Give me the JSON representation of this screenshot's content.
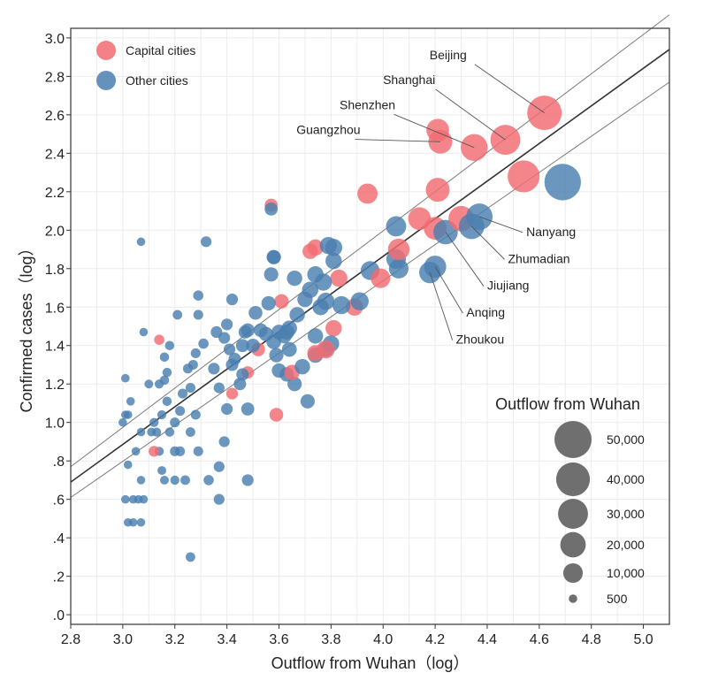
{
  "chart_data": {
    "type": "scatter",
    "xlabel": "Outflow from Wuhan（log）",
    "ylabel": "Confirmed cases（log）",
    "xlim": [
      2.8,
      5.1
    ],
    "ylim": [
      -0.05,
      3.05
    ],
    "x_ticks": [
      "2.8",
      "3.0",
      "3.2",
      "3.4",
      "3.6",
      "3.8",
      "4.0",
      "4.2",
      "4.4",
      "4.6",
      "4.8",
      "5.0"
    ],
    "x_tick_values": [
      2.8,
      3.0,
      3.2,
      3.4,
      3.6,
      3.8,
      4.0,
      4.2,
      4.4,
      4.6,
      4.8,
      5.0
    ],
    "y_ticks": [
      ".0",
      ".2",
      ".4",
      ".6",
      ".8",
      "1.0",
      "1.2",
      "1.4",
      "1.6",
      "1.8",
      "2.0",
      "2.2",
      "2.4",
      "2.6",
      "2.8",
      "3.0"
    ],
    "y_tick_values": [
      0.0,
      0.2,
      0.4,
      0.6,
      0.8,
      1.0,
      1.2,
      1.4,
      1.6,
      1.8,
      2.0,
      2.2,
      2.4,
      2.6,
      2.8,
      3.0
    ],
    "grid": true,
    "legend": {
      "placement": "top-left",
      "entries": [
        {
          "name": "Capital cities",
          "color": "#f26b72"
        },
        {
          "name": "Other cities",
          "color": "#4a7fb0"
        }
      ]
    },
    "size_legend": {
      "title": "Outflow from Wuhan",
      "placement": "bottom-right",
      "entries": [
        {
          "label": "50,000",
          "value": 50000
        },
        {
          "label": "40,000",
          "value": 40000
        },
        {
          "label": "30,000",
          "value": 30000
        },
        {
          "label": "20,000",
          "value": 20000
        },
        {
          "label": "10,000",
          "value": 10000
        },
        {
          "label": "500",
          "value": 500
        }
      ]
    },
    "regression": {
      "fit": {
        "x": [
          2.8,
          5.1
        ],
        "y": [
          0.69,
          2.94
        ]
      },
      "ci_upper": {
        "x": [
          2.8,
          5.1
        ],
        "y": [
          0.77,
          3.12
        ]
      },
      "ci_lower": {
        "x": [
          2.8,
          5.1
        ],
        "y": [
          0.61,
          2.77
        ]
      }
    },
    "annotations": [
      {
        "text": "Beijing",
        "x": 4.62,
        "y": 2.61,
        "label_x": 4.25,
        "label_y": 2.89,
        "anchor": "middle"
      },
      {
        "text": "Shanghai",
        "x": 4.47,
        "y": 2.47,
        "label_x": 4.1,
        "label_y": 2.76,
        "anchor": "middle"
      },
      {
        "text": "Shenzhen",
        "x": 4.35,
        "y": 2.43,
        "label_x": 3.94,
        "label_y": 2.63,
        "anchor": "middle"
      },
      {
        "text": "Guangzhou",
        "x": 4.22,
        "y": 2.46,
        "label_x": 3.79,
        "label_y": 2.5,
        "anchor": "middle"
      },
      {
        "text": "Nanyang",
        "x": 4.37,
        "y": 2.07,
        "label_x": 4.55,
        "label_y": 1.97,
        "anchor": "start"
      },
      {
        "text": "Zhumadian",
        "x": 4.34,
        "y": 2.02,
        "label_x": 4.48,
        "label_y": 1.83,
        "anchor": "start"
      },
      {
        "text": "Jiujiang",
        "x": 4.24,
        "y": 1.99,
        "label_x": 4.4,
        "label_y": 1.69,
        "anchor": "start"
      },
      {
        "text": "Anqing",
        "x": 4.2,
        "y": 1.81,
        "label_x": 4.32,
        "label_y": 1.55,
        "anchor": "start"
      },
      {
        "text": "Zhoukou",
        "x": 4.18,
        "y": 1.78,
        "label_x": 4.28,
        "label_y": 1.41,
        "anchor": "start"
      }
    ],
    "series": [
      {
        "name": "Capital cities",
        "color": "#f26b72",
        "points": [
          {
            "x": 4.62,
            "y": 2.61,
            "s": 42000
          },
          {
            "x": 4.47,
            "y": 2.47,
            "s": 30000
          },
          {
            "x": 4.35,
            "y": 2.43,
            "s": 23000
          },
          {
            "x": 4.22,
            "y": 2.46,
            "s": 17000
          },
          {
            "x": 4.21,
            "y": 2.52,
            "s": 15000
          },
          {
            "x": 4.54,
            "y": 2.28,
            "s": 35000
          },
          {
            "x": 4.21,
            "y": 2.21,
            "s": 17000
          },
          {
            "x": 3.94,
            "y": 2.19,
            "s": 11000
          },
          {
            "x": 4.14,
            "y": 2.06,
            "s": 15000
          },
          {
            "x": 4.2,
            "y": 2.01,
            "s": 15000
          },
          {
            "x": 4.3,
            "y": 2.06,
            "s": 20000
          },
          {
            "x": 4.06,
            "y": 1.9,
            "s": 13000
          },
          {
            "x": 3.99,
            "y": 1.75,
            "s": 10000
          },
          {
            "x": 3.74,
            "y": 1.91,
            "s": 6000
          },
          {
            "x": 3.72,
            "y": 1.89,
            "s": 5000
          },
          {
            "x": 3.83,
            "y": 1.75,
            "s": 7000
          },
          {
            "x": 3.89,
            "y": 1.6,
            "s": 7000
          },
          {
            "x": 3.61,
            "y": 1.63,
            "s": 4000
          },
          {
            "x": 3.57,
            "y": 2.13,
            "s": 3000
          },
          {
            "x": 3.81,
            "y": 1.49,
            "s": 6000
          },
          {
            "x": 3.78,
            "y": 1.38,
            "s": 8000
          },
          {
            "x": 3.74,
            "y": 1.36,
            "s": 6000
          },
          {
            "x": 3.52,
            "y": 1.38,
            "s": 3500
          },
          {
            "x": 3.59,
            "y": 1.04,
            "s": 3500
          },
          {
            "x": 3.65,
            "y": 1.26,
            "s": 5000
          },
          {
            "x": 3.48,
            "y": 1.26,
            "s": 2500
          },
          {
            "x": 3.42,
            "y": 1.15,
            "s": 2000
          },
          {
            "x": 3.12,
            "y": 0.85,
            "s": 1500
          },
          {
            "x": 3.14,
            "y": 1.43,
            "s": 1200
          }
        ]
      },
      {
        "name": "Other cities",
        "color": "#4a7fb0",
        "points": [
          {
            "x": 4.69,
            "y": 2.25,
            "s": 48000
          },
          {
            "x": 4.37,
            "y": 2.07,
            "s": 22000
          },
          {
            "x": 4.34,
            "y": 2.02,
            "s": 20000
          },
          {
            "x": 4.24,
            "y": 1.99,
            "s": 18000
          },
          {
            "x": 4.2,
            "y": 1.81,
            "s": 14000
          },
          {
            "x": 4.18,
            "y": 1.78,
            "s": 13000
          },
          {
            "x": 4.05,
            "y": 2.02,
            "s": 11000
          },
          {
            "x": 4.05,
            "y": 1.85,
            "s": 10000
          },
          {
            "x": 4.06,
            "y": 1.8,
            "s": 10000
          },
          {
            "x": 3.95,
            "y": 1.79,
            "s": 9000
          },
          {
            "x": 3.91,
            "y": 1.63,
            "s": 8000
          },
          {
            "x": 3.84,
            "y": 1.61,
            "s": 8000
          },
          {
            "x": 3.79,
            "y": 1.92,
            "s": 7000
          },
          {
            "x": 3.81,
            "y": 1.91,
            "s": 7000
          },
          {
            "x": 3.81,
            "y": 1.84,
            "s": 6000
          },
          {
            "x": 3.77,
            "y": 1.73,
            "s": 7000
          },
          {
            "x": 3.74,
            "y": 1.77,
            "s": 6000
          },
          {
            "x": 3.78,
            "y": 1.63,
            "s": 7000
          },
          {
            "x": 3.76,
            "y": 1.6,
            "s": 6000
          },
          {
            "x": 3.72,
            "y": 1.69,
            "s": 6000
          },
          {
            "x": 3.7,
            "y": 1.64,
            "s": 5000
          },
          {
            "x": 3.67,
            "y": 1.56,
            "s": 5000
          },
          {
            "x": 3.66,
            "y": 1.75,
            "s": 5000
          },
          {
            "x": 3.64,
            "y": 1.49,
            "s": 5000
          },
          {
            "x": 3.63,
            "y": 1.47,
            "s": 5000
          },
          {
            "x": 3.62,
            "y": 1.45,
            "s": 4500
          },
          {
            "x": 3.6,
            "y": 1.47,
            "s": 4500
          },
          {
            "x": 3.58,
            "y": 1.42,
            "s": 4500
          },
          {
            "x": 3.58,
            "y": 1.86,
            "s": 4000
          },
          {
            "x": 3.57,
            "y": 1.77,
            "s": 4000
          },
          {
            "x": 3.56,
            "y": 1.62,
            "s": 4000
          },
          {
            "x": 3.55,
            "y": 1.46,
            "s": 4000
          },
          {
            "x": 3.53,
            "y": 1.48,
            "s": 3500
          },
          {
            "x": 3.51,
            "y": 1.57,
            "s": 3500
          },
          {
            "x": 3.5,
            "y": 1.4,
            "s": 3500
          },
          {
            "x": 3.48,
            "y": 1.48,
            "s": 3500
          },
          {
            "x": 3.47,
            "y": 1.47,
            "s": 3000
          },
          {
            "x": 3.46,
            "y": 1.4,
            "s": 3000
          },
          {
            "x": 3.57,
            "y": 2.11,
            "s": 3000
          },
          {
            "x": 3.58,
            "y": 1.86,
            "s": 3500
          },
          {
            "x": 3.59,
            "y": 1.35,
            "s": 4000
          },
          {
            "x": 3.64,
            "y": 1.38,
            "s": 4500
          },
          {
            "x": 3.6,
            "y": 1.27,
            "s": 4000
          },
          {
            "x": 3.63,
            "y": 1.25,
            "s": 4000
          },
          {
            "x": 3.66,
            "y": 1.2,
            "s": 4000
          },
          {
            "x": 3.69,
            "y": 1.29,
            "s": 5000
          },
          {
            "x": 3.74,
            "y": 1.45,
            "s": 5000
          },
          {
            "x": 3.78,
            "y": 1.38,
            "s": 5000
          },
          {
            "x": 3.8,
            "y": 1.41,
            "s": 6000
          },
          {
            "x": 3.74,
            "y": 1.35,
            "s": 5000
          },
          {
            "x": 3.71,
            "y": 1.11,
            "s": 4000
          },
          {
            "x": 3.48,
            "y": 1.07,
            "s": 3000
          },
          {
            "x": 3.46,
            "y": 1.25,
            "s": 2500
          },
          {
            "x": 3.45,
            "y": 1.2,
            "s": 2500
          },
          {
            "x": 3.43,
            "y": 1.33,
            "s": 2500
          },
          {
            "x": 3.42,
            "y": 1.3,
            "s": 2500
          },
          {
            "x": 3.41,
            "y": 1.38,
            "s": 2000
          },
          {
            "x": 3.4,
            "y": 1.51,
            "s": 2000
          },
          {
            "x": 3.39,
            "y": 1.44,
            "s": 2000
          },
          {
            "x": 3.42,
            "y": 1.64,
            "s": 2000
          },
          {
            "x": 3.36,
            "y": 1.47,
            "s": 2000
          },
          {
            "x": 3.35,
            "y": 1.28,
            "s": 2000
          },
          {
            "x": 3.37,
            "y": 1.18,
            "s": 1500
          },
          {
            "x": 3.4,
            "y": 1.07,
            "s": 2000
          },
          {
            "x": 3.39,
            "y": 0.9,
            "s": 1500
          },
          {
            "x": 3.37,
            "y": 0.77,
            "s": 1500
          },
          {
            "x": 3.37,
            "y": 0.6,
            "s": 1500
          },
          {
            "x": 3.48,
            "y": 0.7,
            "s": 2000
          },
          {
            "x": 3.32,
            "y": 1.94,
            "s": 1500
          },
          {
            "x": 3.29,
            "y": 1.66,
            "s": 1200
          },
          {
            "x": 3.29,
            "y": 1.56,
            "s": 1000
          },
          {
            "x": 3.31,
            "y": 1.41,
            "s": 1200
          },
          {
            "x": 3.28,
            "y": 1.36,
            "s": 1000
          },
          {
            "x": 3.27,
            "y": 1.3,
            "s": 1000
          },
          {
            "x": 3.25,
            "y": 1.28,
            "s": 1000
          },
          {
            "x": 3.26,
            "y": 1.18,
            "s": 1000
          },
          {
            "x": 3.23,
            "y": 1.15,
            "s": 1000
          },
          {
            "x": 3.22,
            "y": 1.06,
            "s": 1000
          },
          {
            "x": 3.2,
            "y": 1.0,
            "s": 1000
          },
          {
            "x": 3.28,
            "y": 1.04,
            "s": 1000
          },
          {
            "x": 3.26,
            "y": 0.95,
            "s": 900
          },
          {
            "x": 3.29,
            "y": 0.85,
            "s": 1000
          },
          {
            "x": 3.33,
            "y": 0.7,
            "s": 1200
          },
          {
            "x": 3.24,
            "y": 0.7,
            "s": 900
          },
          {
            "x": 3.22,
            "y": 0.85,
            "s": 1000
          },
          {
            "x": 3.2,
            "y": 0.85,
            "s": 1000
          },
          {
            "x": 3.26,
            "y": 0.3,
            "s": 900
          },
          {
            "x": 3.21,
            "y": 1.56,
            "s": 900
          },
          {
            "x": 3.18,
            "y": 1.4,
            "s": 800
          },
          {
            "x": 3.16,
            "y": 1.34,
            "s": 800
          },
          {
            "x": 3.17,
            "y": 1.26,
            "s": 800
          },
          {
            "x": 3.16,
            "y": 1.22,
            "s": 800
          },
          {
            "x": 3.14,
            "y": 1.2,
            "s": 700
          },
          {
            "x": 3.17,
            "y": 1.11,
            "s": 800
          },
          {
            "x": 3.15,
            "y": 1.04,
            "s": 700
          },
          {
            "x": 3.12,
            "y": 1.0,
            "s": 700
          },
          {
            "x": 3.13,
            "y": 0.95,
            "s": 700
          },
          {
            "x": 3.18,
            "y": 0.95,
            "s": 800
          },
          {
            "x": 3.1,
            "y": 1.2,
            "s": 600
          },
          {
            "x": 3.11,
            "y": 0.95,
            "s": 600
          },
          {
            "x": 3.14,
            "y": 0.85,
            "s": 700
          },
          {
            "x": 3.15,
            "y": 0.75,
            "s": 600
          },
          {
            "x": 3.16,
            "y": 0.7,
            "s": 600
          },
          {
            "x": 3.2,
            "y": 0.7,
            "s": 700
          },
          {
            "x": 3.07,
            "y": 1.94,
            "s": 500
          },
          {
            "x": 3.08,
            "y": 1.47,
            "s": 500
          },
          {
            "x": 3.01,
            "y": 1.23,
            "s": 500
          },
          {
            "x": 3.03,
            "y": 1.11,
            "s": 500
          },
          {
            "x": 3.01,
            "y": 1.04,
            "s": 500
          },
          {
            "x": 3.02,
            "y": 1.04,
            "s": 500
          },
          {
            "x": 3.0,
            "y": 1.0,
            "s": 500
          },
          {
            "x": 3.05,
            "y": 0.85,
            "s": 500
          },
          {
            "x": 3.07,
            "y": 0.95,
            "s": 500
          },
          {
            "x": 3.02,
            "y": 0.78,
            "s": 500
          },
          {
            "x": 3.07,
            "y": 0.7,
            "s": 500
          },
          {
            "x": 3.06,
            "y": 0.6,
            "s": 500
          },
          {
            "x": 3.08,
            "y": 0.6,
            "s": 500
          },
          {
            "x": 3.01,
            "y": 0.6,
            "s": 500
          },
          {
            "x": 3.04,
            "y": 0.6,
            "s": 500
          },
          {
            "x": 3.02,
            "y": 0.48,
            "s": 500
          },
          {
            "x": 3.04,
            "y": 0.48,
            "s": 500
          },
          {
            "x": 3.07,
            "y": 0.48,
            "s": 500
          }
        ]
      }
    ]
  }
}
